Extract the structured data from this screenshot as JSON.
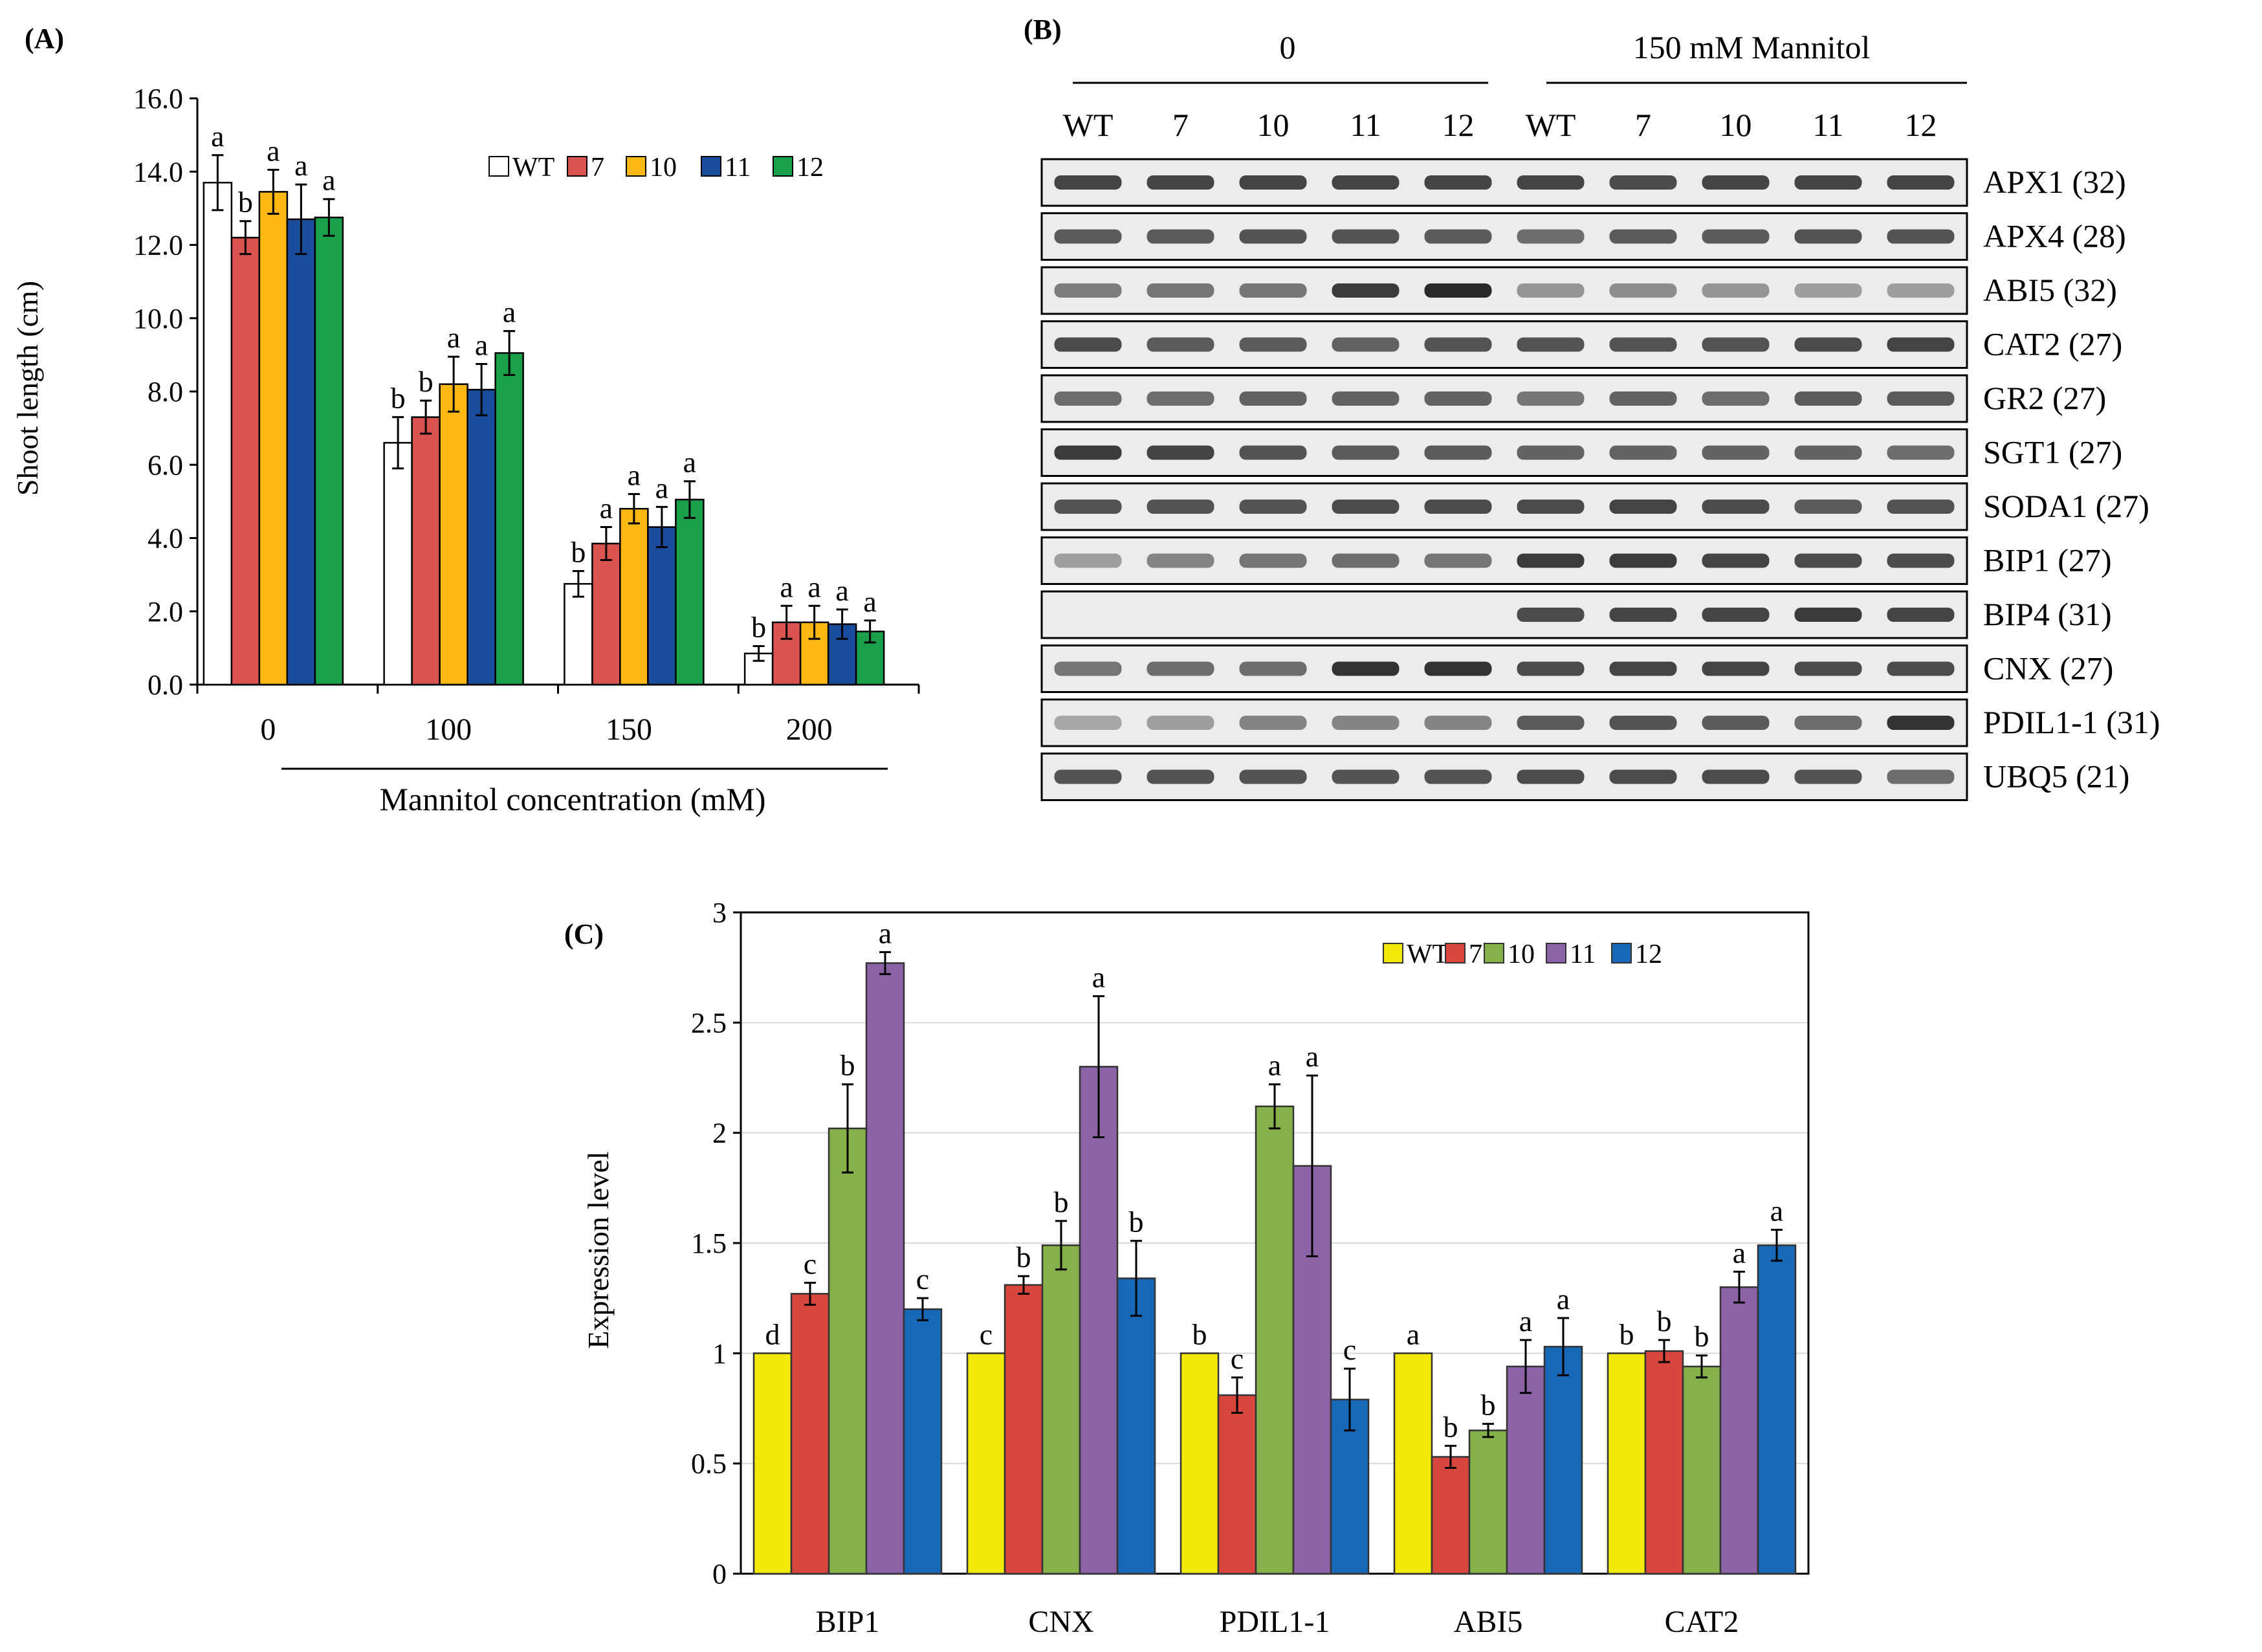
{
  "colors": {
    "WT_A": "#ffffff",
    "7": "#d9534f",
    "10": "#fdb813",
    "11": "#1a4e9c",
    "12": "#1aa04b",
    "WT_C": "#f2ea06",
    "7_C": "#d9463e",
    "10_C": "#86b04a",
    "11_C": "#8b63a6",
    "12_C": "#1769b8",
    "band": "#2a2a2a",
    "gel_bg": "#ececec"
  },
  "chart_data": [
    {
      "id": "A",
      "panel_label": "(A)",
      "type": "bar",
      "title": "",
      "xlabel": "Mannitol concentration (mM)",
      "ylabel": "Shoot length (cm)",
      "categories": [
        "0",
        "100",
        "150",
        "200"
      ],
      "ylim": [
        0,
        16
      ],
      "yticks": [
        "0.0",
        "2.0",
        "4.0",
        "6.0",
        "8.0",
        "10.0",
        "12.0",
        "14.0",
        "16.0"
      ],
      "legend": [
        "WT",
        "7",
        "10",
        "11",
        "12"
      ],
      "legend_position": "top-right",
      "series": [
        {
          "name": "WT",
          "values": [
            13.7,
            6.6,
            2.75,
            0.85
          ],
          "errors": [
            0.75,
            0.7,
            0.35,
            0.2
          ],
          "letters": [
            "a",
            "b",
            "b",
            "b"
          ]
        },
        {
          "name": "7",
          "values": [
            12.2,
            7.3,
            3.85,
            1.7
          ],
          "errors": [
            0.45,
            0.45,
            0.45,
            0.45
          ],
          "letters": [
            "b",
            "b",
            "a",
            "a"
          ]
        },
        {
          "name": "10",
          "values": [
            13.45,
            8.2,
            4.8,
            1.7
          ],
          "errors": [
            0.6,
            0.75,
            0.4,
            0.45
          ],
          "letters": [
            "a",
            "a",
            "a",
            "a"
          ]
        },
        {
          "name": "11",
          "values": [
            12.7,
            8.05,
            4.3,
            1.65
          ],
          "errors": [
            0.95,
            0.7,
            0.55,
            0.4
          ],
          "letters": [
            "a",
            "a",
            "a",
            "a"
          ]
        },
        {
          "name": "12",
          "values": [
            12.75,
            9.05,
            5.05,
            1.45
          ],
          "errors": [
            0.5,
            0.6,
            0.5,
            0.3
          ],
          "letters": [
            "a",
            "a",
            "a",
            "a"
          ]
        }
      ]
    },
    {
      "id": "C",
      "panel_label": "(C)",
      "type": "bar",
      "title": "",
      "xlabel": "",
      "ylabel": "Expression level",
      "categories": [
        "BIP1",
        "CNX",
        "PDIL1-1",
        "ABI5",
        "CAT2"
      ],
      "ylim": [
        0,
        3
      ],
      "yticks": [
        "0",
        "0.5",
        "1",
        "1.5",
        "2",
        "2.5",
        "3"
      ],
      "grid": true,
      "legend": [
        "WT",
        "7",
        "10",
        "11",
        "12"
      ],
      "legend_position": "top-right",
      "series": [
        {
          "name": "WT",
          "values": [
            1.0,
            1.0,
            1.0,
            1.0,
            1.0
          ],
          "errors": [
            0,
            0,
            0,
            0,
            0
          ],
          "letters": [
            "d",
            "c",
            "b",
            "a",
            "b"
          ]
        },
        {
          "name": "7",
          "values": [
            1.27,
            1.31,
            0.81,
            0.53,
            1.01
          ],
          "errors": [
            0.05,
            0.04,
            0.08,
            0.05,
            0.05
          ],
          "letters": [
            "c",
            "b",
            "c",
            "b",
            "b"
          ]
        },
        {
          "name": "10",
          "values": [
            2.02,
            1.49,
            2.12,
            0.65,
            0.94
          ],
          "errors": [
            0.2,
            0.11,
            0.1,
            0.03,
            0.05
          ],
          "letters": [
            "b",
            "b",
            "a",
            "b",
            "b"
          ]
        },
        {
          "name": "11",
          "values": [
            2.77,
            2.3,
            1.85,
            0.94,
            1.3
          ],
          "errors": [
            0.05,
            0.32,
            0.41,
            0.12,
            0.07
          ],
          "letters": [
            "a",
            "a",
            "a",
            "a",
            "a"
          ]
        },
        {
          "name": "12",
          "values": [
            1.2,
            1.34,
            0.79,
            1.03,
            1.49
          ],
          "errors": [
            0.05,
            0.17,
            0.14,
            0.13,
            0.07
          ],
          "letters": [
            "c",
            "b",
            "c",
            "a",
            "a"
          ]
        }
      ]
    }
  ],
  "gel": {
    "panel_label": "(B)",
    "group_labels": [
      "0",
      "150 mM Mannitol"
    ],
    "lane_labels": [
      "WT",
      "7",
      "10",
      "11",
      "12",
      "WT",
      "7",
      "10",
      "11",
      "12"
    ],
    "rows": [
      {
        "label": "APX1 (32)",
        "intensity": [
          0.85,
          0.85,
          0.85,
          0.85,
          0.85,
          0.85,
          0.8,
          0.85,
          0.85,
          0.85
        ]
      },
      {
        "label": "APX4 (28)",
        "intensity": [
          0.7,
          0.7,
          0.75,
          0.75,
          0.7,
          0.6,
          0.7,
          0.7,
          0.75,
          0.75
        ]
      },
      {
        "label": "ABI5 (32)",
        "intensity": [
          0.5,
          0.55,
          0.55,
          0.9,
          1.0,
          0.35,
          0.4,
          0.35,
          0.3,
          0.3
        ]
      },
      {
        "label": "CAT2 (27)",
        "intensity": [
          0.8,
          0.7,
          0.7,
          0.65,
          0.75,
          0.75,
          0.75,
          0.75,
          0.8,
          0.85
        ]
      },
      {
        "label": "GR2 (27)",
        "intensity": [
          0.6,
          0.6,
          0.65,
          0.65,
          0.65,
          0.55,
          0.65,
          0.6,
          0.7,
          0.7
        ]
      },
      {
        "label": "SGT1 (27)",
        "intensity": [
          0.9,
          0.85,
          0.75,
          0.7,
          0.7,
          0.65,
          0.65,
          0.65,
          0.65,
          0.6
        ]
      },
      {
        "label": "SODA1 (27)",
        "intensity": [
          0.75,
          0.75,
          0.75,
          0.8,
          0.8,
          0.8,
          0.85,
          0.8,
          0.7,
          0.75
        ]
      },
      {
        "label": "BIP1 (27)",
        "intensity": [
          0.3,
          0.45,
          0.55,
          0.6,
          0.55,
          0.9,
          0.9,
          0.85,
          0.8,
          0.8
        ]
      },
      {
        "label": "BIP4 (31)",
        "intensity": [
          0.0,
          0.0,
          0.0,
          0.0,
          0.0,
          0.8,
          0.85,
          0.85,
          0.9,
          0.85
        ]
      },
      {
        "label": "CNX (27)",
        "intensity": [
          0.55,
          0.6,
          0.6,
          0.95,
          0.95,
          0.8,
          0.85,
          0.85,
          0.8,
          0.8
        ]
      },
      {
        "label": "PDIL1-1 (31)",
        "intensity": [
          0.25,
          0.3,
          0.45,
          0.45,
          0.45,
          0.7,
          0.75,
          0.7,
          0.6,
          0.95
        ]
      },
      {
        "label": "UBQ5 (21)",
        "intensity": [
          0.75,
          0.75,
          0.75,
          0.75,
          0.75,
          0.8,
          0.8,
          0.8,
          0.75,
          0.6
        ]
      }
    ]
  }
}
